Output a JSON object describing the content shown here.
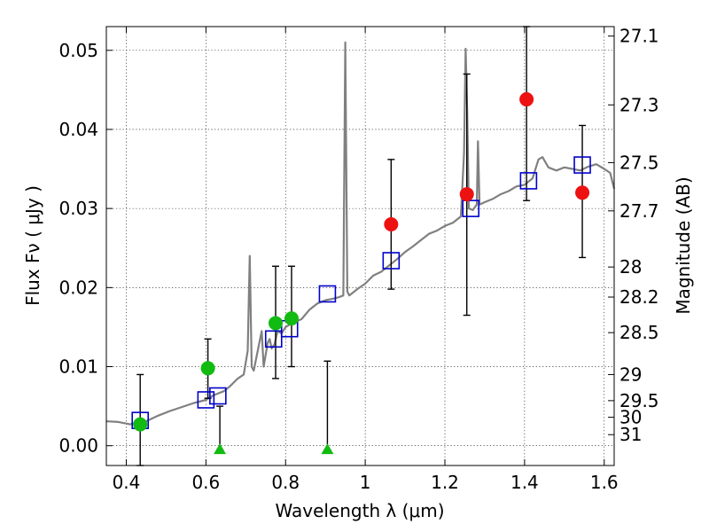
{
  "chart_data": {
    "type": "scatter",
    "title": "",
    "xlabel": "Wavelength  λ (μm)",
    "ylabel": "Flux  Fν  ( μJy )",
    "ylabel_right": "Magnitude (AB)",
    "xlim": [
      0.35,
      1.625
    ],
    "ylim": [
      -0.0025,
      0.053
    ],
    "grid": true,
    "x_ticks": [
      0.4,
      0.6,
      0.8,
      1.0,
      1.2,
      1.4,
      1.6
    ],
    "x_tick_labels": [
      "0.4",
      "0.6",
      "0.8",
      "1",
      "1.2",
      "1.4",
      "1.6"
    ],
    "y_ticks": [
      0.0,
      0.01,
      0.02,
      0.03,
      0.04,
      0.05
    ],
    "y_tick_labels": [
      "0.00",
      "0.01",
      "0.02",
      "0.03",
      "0.04",
      "0.05"
    ],
    "right_ticks": [
      {
        "label": "27.1",
        "flux": 0.0518
      },
      {
        "label": "27.3",
        "flux": 0.0431
      },
      {
        "label": "27.5",
        "flux": 0.0358
      },
      {
        "label": "27.7",
        "flux": 0.0297
      },
      {
        "label": "28",
        "flux": 0.0226
      },
      {
        "label": "28.2",
        "flux": 0.0188
      },
      {
        "label": "28.5",
        "flux": 0.0143
      },
      {
        "label": "29",
        "flux": 0.009
      },
      {
        "label": "29.5",
        "flux": 0.0057
      },
      {
        "label": "30",
        "flux": 0.0036
      },
      {
        "label": "31",
        "flux": 0.0014
      }
    ],
    "colors": {
      "model": "#808080",
      "template": "#0000cc",
      "detection_red": "#ee1111",
      "detection_green": "#11bb11",
      "errorbar": "#000000"
    },
    "series": [
      {
        "kind": "line",
        "points": [
          [
            0.35,
            0.0031
          ],
          [
            0.38,
            0.003
          ],
          [
            0.41,
            0.0027
          ],
          [
            0.43,
            0.003
          ],
          [
            0.45,
            0.0031
          ],
          [
            0.48,
            0.0038
          ],
          [
            0.51,
            0.0044
          ],
          [
            0.54,
            0.0049
          ],
          [
            0.57,
            0.0054
          ],
          [
            0.6,
            0.0058
          ],
          [
            0.62,
            0.0064
          ],
          [
            0.645,
            0.0069
          ],
          [
            0.66,
            0.0075
          ],
          [
            0.68,
            0.0085
          ],
          [
            0.695,
            0.009
          ],
          [
            0.705,
            0.012
          ],
          [
            0.71,
            0.024
          ],
          [
            0.715,
            0.01
          ],
          [
            0.72,
            0.0095
          ],
          [
            0.73,
            0.012
          ],
          [
            0.74,
            0.0145
          ],
          [
            0.745,
            0.01
          ],
          [
            0.755,
            0.013
          ],
          [
            0.76,
            0.0135
          ],
          [
            0.765,
            0.0123
          ],
          [
            0.772,
            0.0128
          ],
          [
            0.78,
            0.0145
          ],
          [
            0.79,
            0.0142
          ],
          [
            0.8,
            0.015
          ],
          [
            0.82,
            0.0156
          ],
          [
            0.84,
            0.016
          ],
          [
            0.86,
            0.0172
          ],
          [
            0.88,
            0.018
          ],
          [
            0.9,
            0.0184
          ],
          [
            0.92,
            0.0186
          ],
          [
            0.935,
            0.0188
          ],
          [
            0.945,
            0.019
          ],
          [
            0.95,
            0.051
          ],
          [
            0.955,
            0.0195
          ],
          [
            0.96,
            0.019
          ],
          [
            0.98,
            0.0198
          ],
          [
            1.0,
            0.0205
          ],
          [
            1.02,
            0.0215
          ],
          [
            1.04,
            0.022
          ],
          [
            1.06,
            0.0228
          ],
          [
            1.08,
            0.0236
          ],
          [
            1.1,
            0.0245
          ],
          [
            1.12,
            0.0252
          ],
          [
            1.14,
            0.026
          ],
          [
            1.16,
            0.0268
          ],
          [
            1.18,
            0.0272
          ],
          [
            1.2,
            0.0278
          ],
          [
            1.22,
            0.0282
          ],
          [
            1.24,
            0.029
          ],
          [
            1.248,
            0.037
          ],
          [
            1.252,
            0.0502
          ],
          [
            1.256,
            0.042
          ],
          [
            1.26,
            0.03
          ],
          [
            1.27,
            0.0298
          ],
          [
            1.28,
            0.0305
          ],
          [
            1.283,
            0.0385
          ],
          [
            1.287,
            0.0305
          ],
          [
            1.3,
            0.0308
          ],
          [
            1.32,
            0.0312
          ],
          [
            1.34,
            0.0318
          ],
          [
            1.36,
            0.0322
          ],
          [
            1.38,
            0.0328
          ],
          [
            1.4,
            0.033
          ],
          [
            1.42,
            0.0338
          ],
          [
            1.435,
            0.0362
          ],
          [
            1.445,
            0.0365
          ],
          [
            1.46,
            0.0352
          ],
          [
            1.48,
            0.0348
          ],
          [
            1.5,
            0.0352
          ],
          [
            1.52,
            0.035
          ],
          [
            1.54,
            0.0348
          ],
          [
            1.56,
            0.0353
          ],
          [
            1.58,
            0.0356
          ],
          [
            1.6,
            0.035
          ],
          [
            1.615,
            0.0345
          ],
          [
            1.625,
            0.0325
          ]
        ]
      },
      {
        "kind": "open-squares",
        "points": [
          [
            0.435,
            0.0032
          ],
          [
            0.6,
            0.0058
          ],
          [
            0.63,
            0.0063
          ],
          [
            0.77,
            0.0135
          ],
          [
            0.81,
            0.0148
          ],
          [
            0.905,
            0.0192
          ],
          [
            1.065,
            0.0234
          ],
          [
            1.265,
            0.03
          ],
          [
            1.41,
            0.0335
          ],
          [
            1.545,
            0.0355
          ]
        ]
      },
      {
        "kind": "filled-circles-red",
        "points": [
          {
            "x": 1.065,
            "y": 0.028,
            "lo": 0.0198,
            "hi": 0.0362
          },
          {
            "x": 1.255,
            "y": 0.0318,
            "lo": 0.0165,
            "hi": 0.047
          },
          {
            "x": 1.405,
            "y": 0.0438,
            "lo": 0.031,
            "hi": 0.053
          },
          {
            "x": 1.545,
            "y": 0.032,
            "lo": 0.0238,
            "hi": 0.0405
          }
        ]
      },
      {
        "kind": "filled-circles-green",
        "points": [
          {
            "x": 0.435,
            "y": 0.0027,
            "lo": -0.0025,
            "hi": 0.009
          },
          {
            "x": 0.605,
            "y": 0.0098,
            "lo": 0.006,
            "hi": 0.0135
          },
          {
            "x": 0.775,
            "y": 0.0155,
            "lo": 0.0085,
            "hi": 0.0227
          },
          {
            "x": 0.815,
            "y": 0.0161,
            "lo": 0.01,
            "hi": 0.0227
          }
        ]
      },
      {
        "kind": "upper-limits",
        "points": [
          {
            "x": 0.635,
            "y": -0.0005,
            "lo": -0.0005,
            "hi": 0.005
          },
          {
            "x": 0.905,
            "y": -0.0005,
            "lo": -0.0005,
            "hi": 0.0107
          }
        ]
      }
    ]
  }
}
